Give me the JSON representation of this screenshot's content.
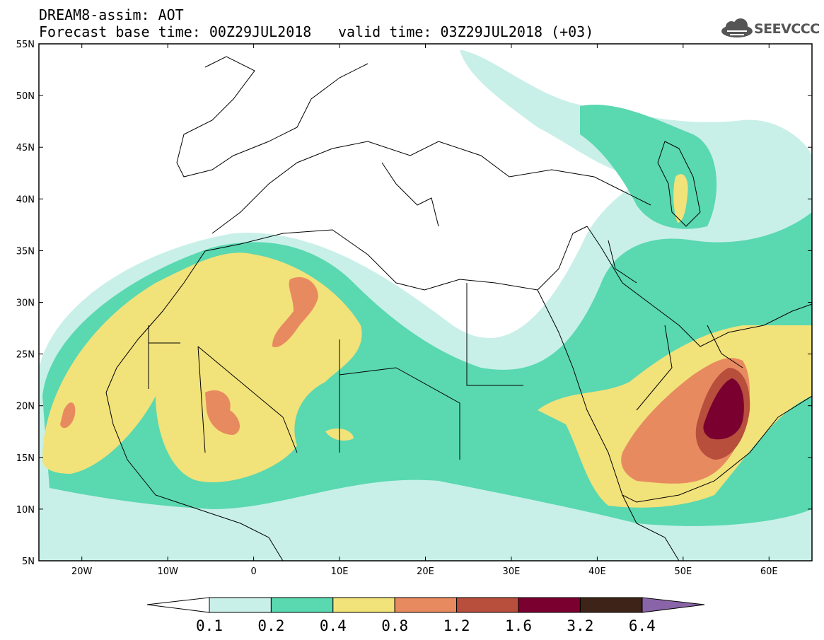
{
  "header": {
    "title": "DREAM8-assim: AOT",
    "base_time": "Forecast base time: 00Z29JUL2018",
    "valid_time": "valid time: 03Z29JUL2018 (+03)",
    "logo_text": "SEEVCCC"
  },
  "map": {
    "lon_range": [
      -25,
      65
    ],
    "lat_range": [
      5,
      55
    ],
    "lat_labels": [
      "55N",
      "50N",
      "45N",
      "40N",
      "35N",
      "30N",
      "25N",
      "20N",
      "15N",
      "10N",
      "5N"
    ],
    "lon_labels": [
      "20W",
      "10W",
      "0",
      "10E",
      "20E",
      "30E",
      "40E",
      "50E",
      "60E"
    ]
  },
  "colorbar": {
    "labels": [
      "0.1",
      "0.2",
      "0.4",
      "0.8",
      "1.2",
      "1.6",
      "3.2",
      "6.4"
    ],
    "colors": [
      "#c8f0e8",
      "#5ad8b0",
      "#f2e27a",
      "#e88a60",
      "#b84e3c",
      "#7a0030",
      "#3e2418",
      "#8a64a8"
    ]
  }
}
